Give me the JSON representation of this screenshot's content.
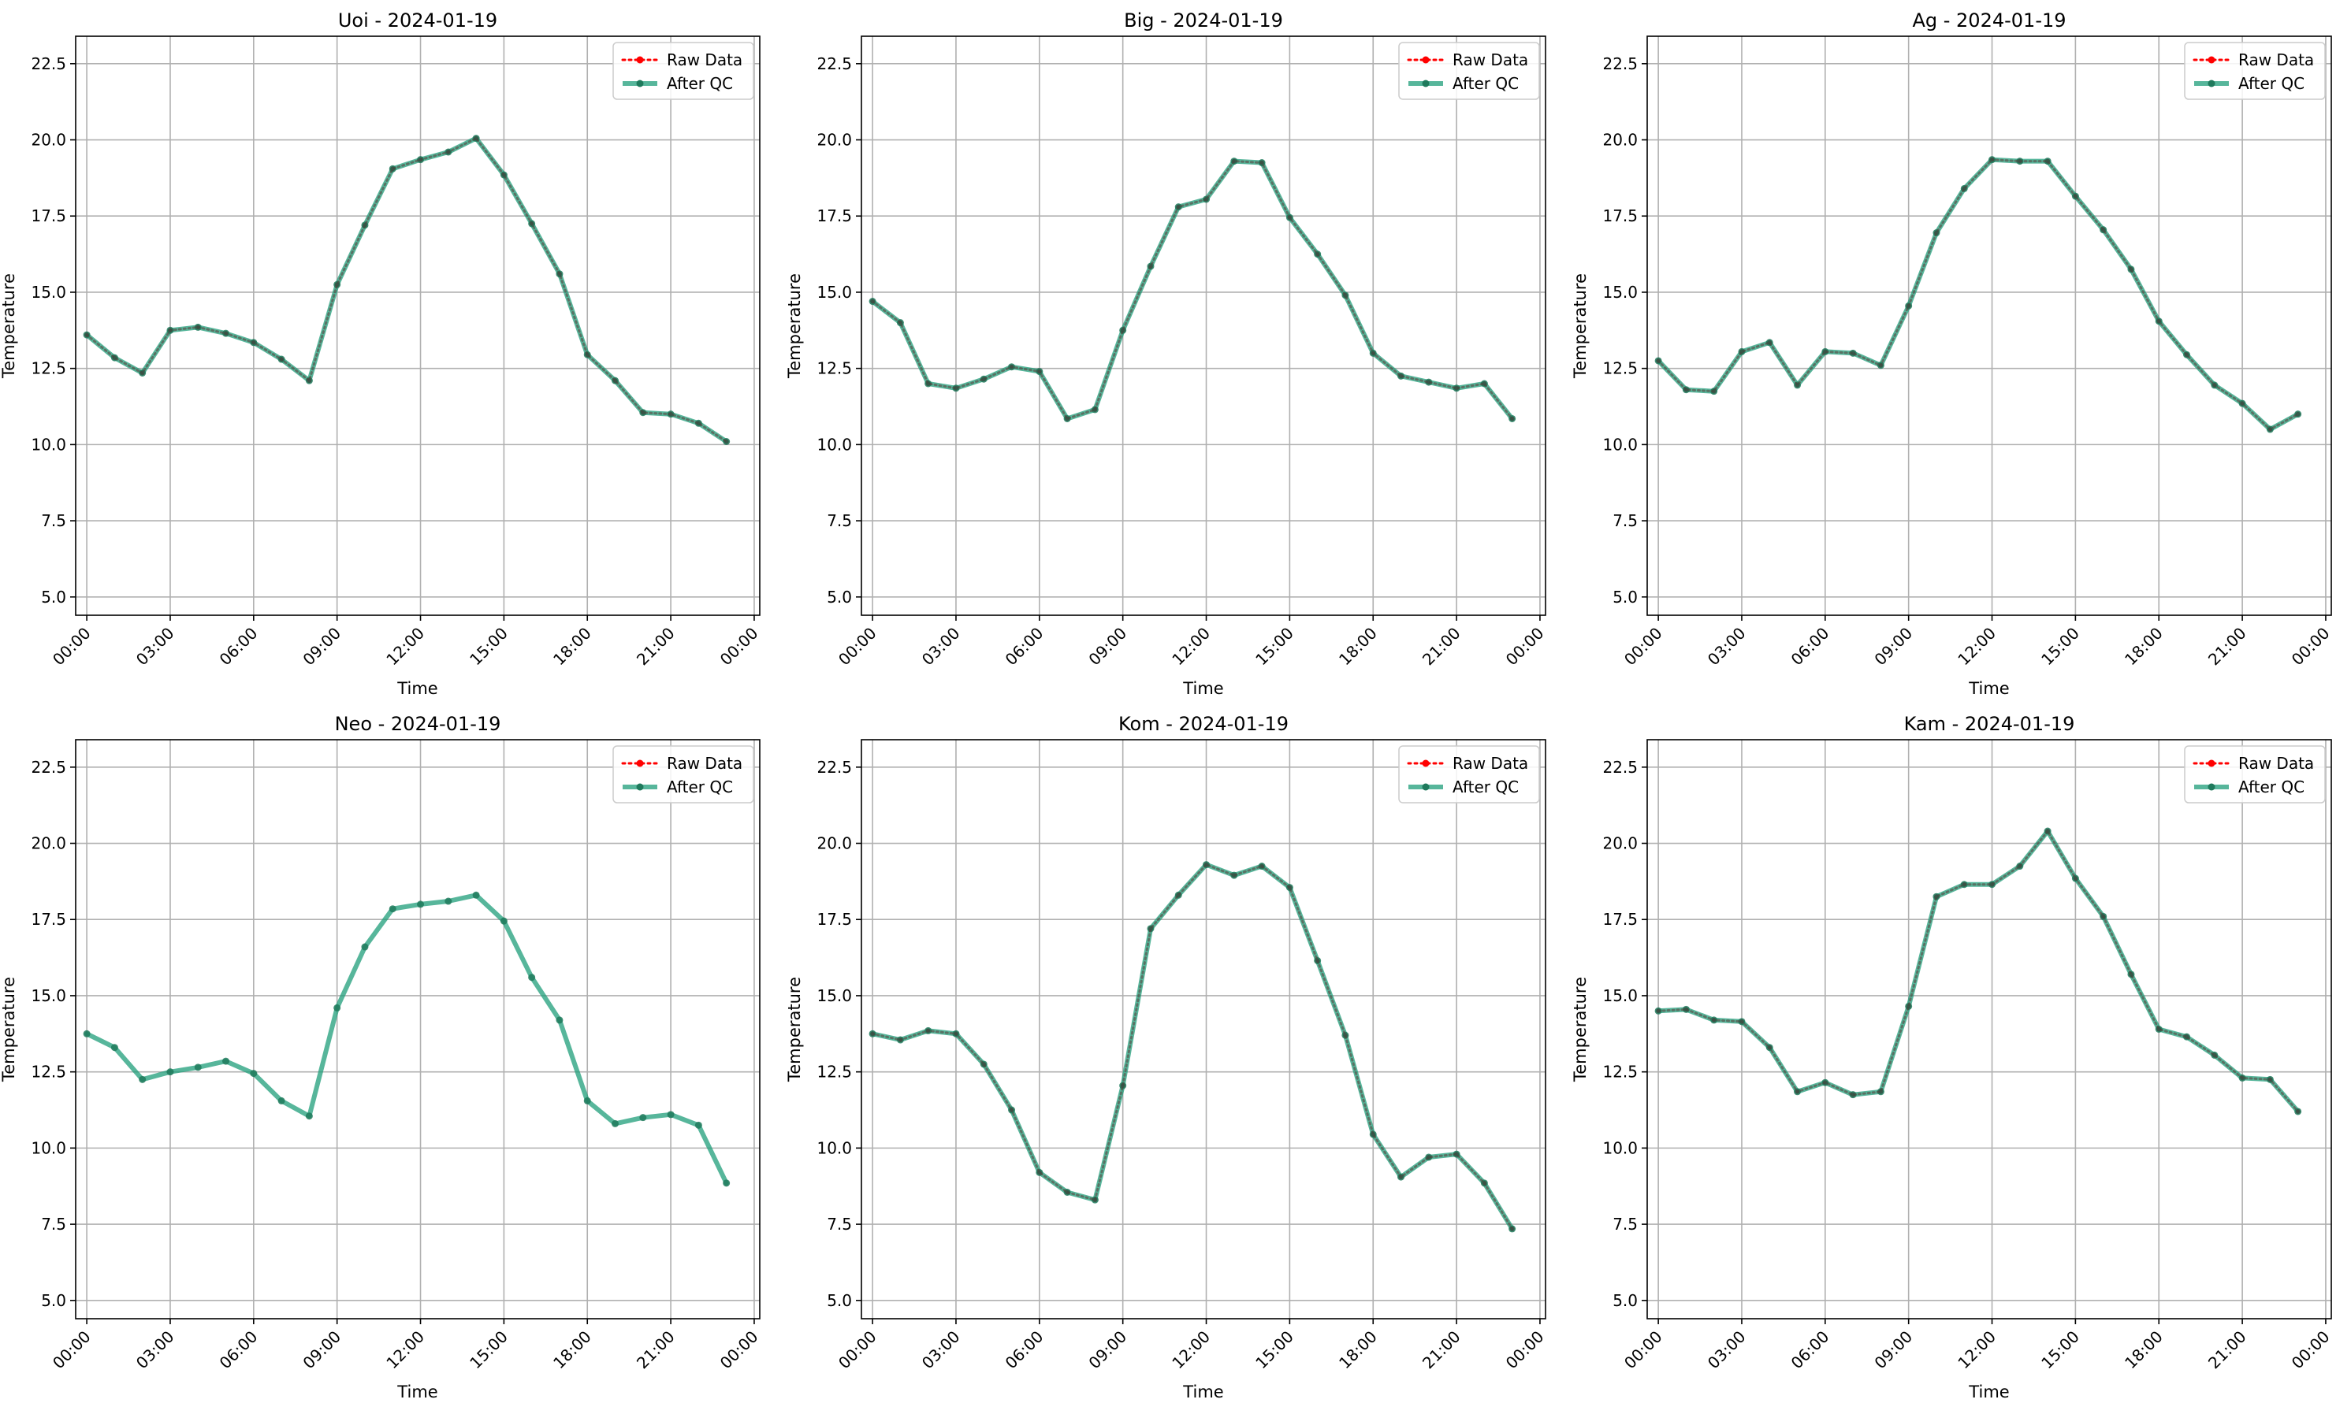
{
  "figure": {
    "colors": {
      "raw": "#ff0000",
      "qc": "#1f9e7a",
      "qc_marker": "#1f7a5c",
      "grid": "#b0b0b0"
    }
  },
  "chart_data": [
    {
      "type": "line",
      "title": "Uoi - 2024-01-19",
      "xlabel": "Time",
      "ylabel": "Temperature",
      "x": [
        "00:00",
        "01:00",
        "02:00",
        "03:00",
        "04:00",
        "05:00",
        "06:00",
        "07:00",
        "08:00",
        "09:00",
        "10:00",
        "11:00",
        "12:00",
        "13:00",
        "14:00",
        "15:00",
        "16:00",
        "17:00",
        "18:00",
        "19:00",
        "20:00",
        "21:00",
        "22:00",
        "23:00"
      ],
      "x_tick_labels": [
        "00:00",
        "03:00",
        "06:00",
        "09:00",
        "12:00",
        "15:00",
        "18:00",
        "21:00",
        "00:00"
      ],
      "y_tick_labels": [
        "5.0",
        "7.5",
        "10.0",
        "12.5",
        "15.0",
        "17.5",
        "20.0",
        "22.5"
      ],
      "ylim": [
        4.4,
        23.4
      ],
      "grid": true,
      "legend": "top-right",
      "series": [
        {
          "name": "Raw Data",
          "style": "dotted",
          "values": [
            13.6,
            12.85,
            12.35,
            13.75,
            13.85,
            13.65,
            13.35,
            12.8,
            12.1,
            15.25,
            17.2,
            19.05,
            19.35,
            19.6,
            20.05,
            18.85,
            17.25,
            15.6,
            12.95,
            12.1,
            11.05,
            11.0,
            10.7,
            10.1
          ]
        },
        {
          "name": "After QC",
          "style": "solid",
          "values": [
            13.6,
            12.85,
            12.35,
            13.75,
            13.85,
            13.65,
            13.35,
            12.8,
            12.1,
            15.25,
            17.2,
            19.05,
            19.35,
            19.6,
            20.05,
            18.85,
            17.25,
            15.6,
            12.95,
            12.1,
            11.05,
            11.0,
            10.7,
            10.1
          ]
        }
      ]
    },
    {
      "type": "line",
      "title": "Big - 2024-01-19",
      "xlabel": "Time",
      "ylabel": "Temperature",
      "x": [
        "00:00",
        "01:00",
        "02:00",
        "03:00",
        "04:00",
        "05:00",
        "06:00",
        "07:00",
        "08:00",
        "09:00",
        "10:00",
        "11:00",
        "12:00",
        "13:00",
        "14:00",
        "15:00",
        "16:00",
        "17:00",
        "18:00",
        "19:00",
        "20:00",
        "21:00",
        "22:00",
        "23:00"
      ],
      "x_tick_labels": [
        "00:00",
        "03:00",
        "06:00",
        "09:00",
        "12:00",
        "15:00",
        "18:00",
        "21:00",
        "00:00"
      ],
      "y_tick_labels": [
        "5.0",
        "7.5",
        "10.0",
        "12.5",
        "15.0",
        "17.5",
        "20.0",
        "22.5"
      ],
      "ylim": [
        4.4,
        23.4
      ],
      "grid": true,
      "legend": "top-right",
      "series": [
        {
          "name": "Raw Data",
          "style": "dotted",
          "values": [
            14.7,
            14.0,
            12.0,
            11.85,
            12.15,
            12.55,
            12.4,
            10.85,
            11.15,
            13.75,
            15.85,
            17.8,
            18.05,
            19.3,
            19.25,
            17.45,
            16.25,
            14.9,
            13.0,
            12.25,
            12.05,
            11.85,
            12.0,
            10.85
          ]
        },
        {
          "name": "After QC",
          "style": "solid",
          "values": [
            14.7,
            14.0,
            12.0,
            11.85,
            12.15,
            12.55,
            12.4,
            10.85,
            11.15,
            13.75,
            15.85,
            17.8,
            18.05,
            19.3,
            19.25,
            17.45,
            16.25,
            14.9,
            13.0,
            12.25,
            12.05,
            11.85,
            12.0,
            10.85
          ]
        }
      ]
    },
    {
      "type": "line",
      "title": "Ag - 2024-01-19",
      "xlabel": "Time",
      "ylabel": "Temperature",
      "x": [
        "00:00",
        "01:00",
        "02:00",
        "03:00",
        "04:00",
        "05:00",
        "06:00",
        "07:00",
        "08:00",
        "09:00",
        "10:00",
        "11:00",
        "12:00",
        "13:00",
        "14:00",
        "15:00",
        "16:00",
        "17:00",
        "18:00",
        "19:00",
        "20:00",
        "21:00",
        "22:00",
        "23:00"
      ],
      "x_tick_labels": [
        "00:00",
        "03:00",
        "06:00",
        "09:00",
        "12:00",
        "15:00",
        "18:00",
        "21:00",
        "00:00"
      ],
      "y_tick_labels": [
        "5.0",
        "7.5",
        "10.0",
        "12.5",
        "15.0",
        "17.5",
        "20.0",
        "22.5"
      ],
      "ylim": [
        4.4,
        23.4
      ],
      "grid": true,
      "legend": "top-right",
      "series": [
        {
          "name": "Raw Data",
          "style": "dotted",
          "values": [
            12.75,
            11.8,
            11.75,
            13.05,
            13.35,
            11.95,
            13.05,
            13.0,
            12.6,
            14.55,
            16.95,
            18.4,
            19.35,
            19.3,
            19.3,
            18.15,
            17.05,
            15.75,
            14.05,
            12.95,
            11.95,
            11.35,
            10.5,
            11.0
          ]
        },
        {
          "name": "After QC",
          "style": "solid",
          "values": [
            12.75,
            11.8,
            11.75,
            13.05,
            13.35,
            11.95,
            13.05,
            13.0,
            12.6,
            14.55,
            16.95,
            18.4,
            19.35,
            19.3,
            19.3,
            18.15,
            17.05,
            15.75,
            14.05,
            12.95,
            11.95,
            11.35,
            10.5,
            11.0
          ]
        }
      ]
    },
    {
      "type": "line",
      "title": "Neo - 2024-01-19",
      "xlabel": "Time",
      "ylabel": "Temperature",
      "x": [
        "00:00",
        "01:00",
        "02:00",
        "03:00",
        "04:00",
        "05:00",
        "06:00",
        "07:00",
        "08:00",
        "09:00",
        "10:00",
        "11:00",
        "12:00",
        "13:00",
        "14:00",
        "15:00",
        "16:00",
        "17:00",
        "18:00",
        "19:00",
        "20:00",
        "21:00",
        "22:00",
        "23:00"
      ],
      "x_tick_labels": [
        "00:00",
        "03:00",
        "06:00",
        "09:00",
        "12:00",
        "15:00",
        "18:00",
        "21:00",
        "00:00"
      ],
      "y_tick_labels": [
        "5.0",
        "7.5",
        "10.0",
        "12.5",
        "15.0",
        "17.5",
        "20.0",
        "22.5"
      ],
      "ylim": [
        4.4,
        23.4
      ],
      "grid": true,
      "legend": "top-right",
      "series": [
        {
          "name": "Raw Data",
          "style": "dotted",
          "values": [
            13.75,
            13.3,
            12.25,
            12.5,
            12.65,
            12.85,
            12.45,
            11.55,
            11.05,
            14.6,
            16.6,
            17.85,
            18.0,
            18.1,
            18.3,
            17.45,
            15.6,
            14.2,
            11.55,
            10.8,
            11.0,
            11.1,
            10.75,
            8.85
          ]
        },
        {
          "name": "After QC",
          "style": "solid",
          "values": [
            13.75,
            13.3,
            12.25,
            12.5,
            12.65,
            12.85,
            12.45,
            11.55,
            11.05,
            14.6,
            16.6,
            17.85,
            18.0,
            18.1,
            18.3,
            17.45,
            15.6,
            14.2,
            11.55,
            10.8,
            11.0,
            11.1,
            10.75,
            8.85
          ]
        }
      ]
    },
    {
      "type": "line",
      "title": "Kom - 2024-01-19",
      "xlabel": "Time",
      "ylabel": "Temperature",
      "x": [
        "00:00",
        "01:00",
        "02:00",
        "03:00",
        "04:00",
        "05:00",
        "06:00",
        "07:00",
        "08:00",
        "09:00",
        "10:00",
        "11:00",
        "12:00",
        "13:00",
        "14:00",
        "15:00",
        "16:00",
        "17:00",
        "18:00",
        "19:00",
        "20:00",
        "21:00",
        "22:00",
        "23:00"
      ],
      "x_tick_labels": [
        "00:00",
        "03:00",
        "06:00",
        "09:00",
        "12:00",
        "15:00",
        "18:00",
        "21:00",
        "00:00"
      ],
      "y_tick_labels": [
        "5.0",
        "7.5",
        "10.0",
        "12.5",
        "15.0",
        "17.5",
        "20.0",
        "22.5"
      ],
      "ylim": [
        4.4,
        23.4
      ],
      "grid": true,
      "legend": "top-right",
      "series": [
        {
          "name": "Raw Data",
          "style": "dotted",
          "values": [
            13.75,
            13.55,
            13.85,
            13.75,
            12.75,
            11.25,
            9.2,
            8.55,
            8.3,
            12.05,
            17.2,
            18.3,
            19.3,
            18.95,
            19.25,
            18.55,
            16.15,
            13.7,
            10.45,
            9.05,
            9.7,
            9.8,
            8.85,
            7.35
          ]
        },
        {
          "name": "After QC",
          "style": "solid",
          "values": [
            13.75,
            13.55,
            13.85,
            13.75,
            12.75,
            11.25,
            9.2,
            8.55,
            8.3,
            12.05,
            17.2,
            18.3,
            19.3,
            18.95,
            19.25,
            18.55,
            16.15,
            13.7,
            10.45,
            9.05,
            9.7,
            9.8,
            8.85,
            7.35
          ]
        }
      ]
    },
    {
      "type": "line",
      "title": "Kam - 2024-01-19",
      "xlabel": "Time",
      "ylabel": "Temperature",
      "x": [
        "00:00",
        "01:00",
        "02:00",
        "03:00",
        "04:00",
        "05:00",
        "06:00",
        "07:00",
        "08:00",
        "09:00",
        "10:00",
        "11:00",
        "12:00",
        "13:00",
        "14:00",
        "15:00",
        "16:00",
        "17:00",
        "18:00",
        "19:00",
        "20:00",
        "21:00",
        "22:00",
        "23:00"
      ],
      "x_tick_labels": [
        "00:00",
        "03:00",
        "06:00",
        "09:00",
        "12:00",
        "15:00",
        "18:00",
        "21:00",
        "00:00"
      ],
      "y_tick_labels": [
        "5.0",
        "7.5",
        "10.0",
        "12.5",
        "15.0",
        "17.5",
        "20.0",
        "22.5"
      ],
      "ylim": [
        4.4,
        23.4
      ],
      "grid": true,
      "legend": "top-right",
      "series": [
        {
          "name": "Raw Data",
          "style": "dotted",
          "values": [
            14.5,
            14.55,
            14.2,
            14.15,
            13.3,
            11.85,
            12.15,
            11.75,
            11.85,
            14.65,
            18.25,
            18.65,
            18.65,
            19.25,
            20.4,
            18.85,
            17.6,
            15.7,
            13.9,
            13.65,
            13.05,
            12.3,
            12.25,
            11.2
          ]
        },
        {
          "name": "After QC",
          "style": "solid",
          "values": [
            14.5,
            14.55,
            14.2,
            14.15,
            13.3,
            11.85,
            12.15,
            11.75,
            11.85,
            14.65,
            18.25,
            18.65,
            18.65,
            19.25,
            20.4,
            18.85,
            17.6,
            15.7,
            13.9,
            13.65,
            13.05,
            12.3,
            12.25,
            11.2
          ]
        }
      ]
    }
  ]
}
